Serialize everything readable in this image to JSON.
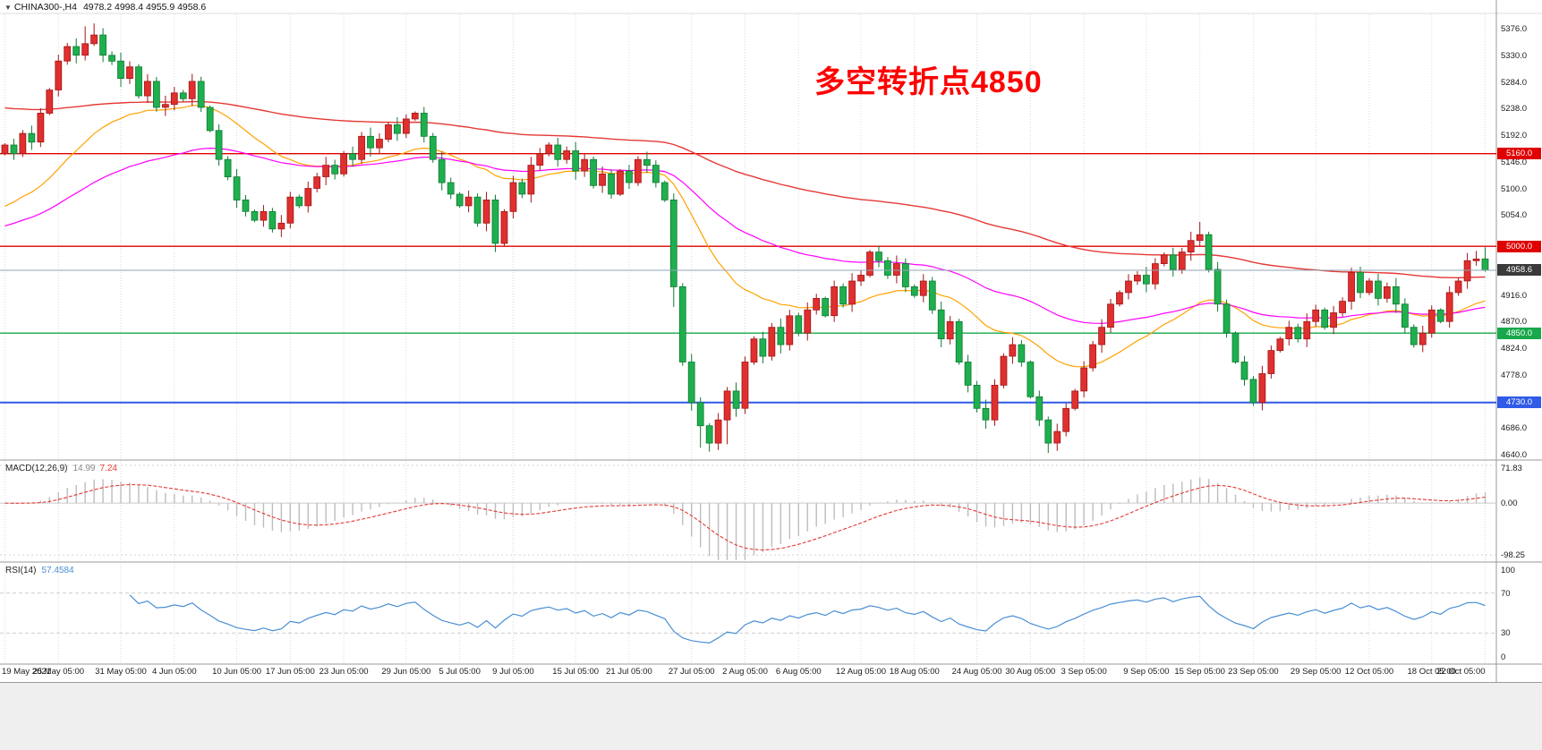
{
  "header": {
    "symbol_period": "CHINA300-,H4",
    "open": "4978.2",
    "high": "4998.4",
    "low": "4955.9",
    "close": "4958.6"
  },
  "annotation": {
    "text": "多空转折点4850",
    "color": "#FF0000"
  },
  "colors": {
    "up": "#DF2F2F",
    "up_stroke": "#A31515",
    "down": "#1FAF4E",
    "down_stroke": "#0F7A33",
    "grid": "#DBDBDB",
    "separator": "#9A9A9A",
    "header_rule": "#DDDDDD",
    "hist": "#BDBDBD",
    "signal": "#E53935",
    "rsi": "#4A8FD4",
    "zero_line": "#C9C9C9",
    "level_dotted": "#D4D4D4"
  },
  "levels": [
    {
      "label": "5160.0",
      "value": 5160.0,
      "color": "#E00000",
      "width": 1.4
    },
    {
      "label": "5000.0",
      "value": 5000.0,
      "color": "#E00000",
      "width": 1.4
    },
    {
      "label": "4850.0",
      "value": 4850.0,
      "color": "#17A84B",
      "width": 1.4
    },
    {
      "label": "4730.0",
      "value": 4730.0,
      "color": "#2F5BE7",
      "width": 2
    }
  ],
  "current_price": {
    "label": "4958.6",
    "value": 4958.6,
    "line_color": "#90A4B7",
    "badge_color": "#3A3A3A"
  },
  "price_axis": {
    "ticks": [
      5376,
      5330,
      5284,
      5238,
      5192,
      5146,
      5100,
      5054,
      4916,
      4870,
      4824,
      4778,
      4686,
      4640
    ]
  },
  "chart_data": {
    "type": "candlestick",
    "title": "CHINA300- H4 candlestick chart with MACD and RSI",
    "symbol": "CHINA300-,H4",
    "last_ohlc": [
      4978.2,
      4998.4,
      4955.9,
      4958.6
    ],
    "first_open": 5160,
    "ylim": [
      4640,
      5376
    ],
    "closes": [
      5175,
      5160,
      5195,
      5180,
      5230,
      5270,
      5320,
      5345,
      5330,
      5350,
      5365,
      5330,
      5320,
      5290,
      5310,
      5260,
      5285,
      5240,
      5245,
      5265,
      5255,
      5285,
      5240,
      5200,
      5150,
      5120,
      5080,
      5060,
      5045,
      5060,
      5030,
      5040,
      5085,
      5070,
      5100,
      5120,
      5140,
      5125,
      5160,
      5150,
      5190,
      5170,
      5185,
      5210,
      5195,
      5220,
      5230,
      5190,
      5150,
      5110,
      5090,
      5070,
      5085,
      5040,
      5080,
      5005,
      5060,
      5110,
      5090,
      5140,
      5160,
      5175,
      5150,
      5165,
      5130,
      5150,
      5105,
      5125,
      5090,
      5130,
      5110,
      5150,
      5140,
      5110,
      5080,
      4930,
      4800,
      4730,
      4690,
      4660,
      4700,
      4750,
      4720,
      4800,
      4840,
      4810,
      4860,
      4830,
      4880,
      4850,
      4890,
      4910,
      4880,
      4930,
      4900,
      4940,
      4950,
      4990,
      4975,
      4950,
      4970,
      4930,
      4915,
      4940,
      4890,
      4840,
      4870,
      4800,
      4760,
      4720,
      4700,
      4760,
      4810,
      4830,
      4800,
      4740,
      4700,
      4660,
      4680,
      4720,
      4750,
      4790,
      4830,
      4860,
      4900,
      4920,
      4940,
      4950,
      4935,
      4970,
      4985,
      4960,
      4990,
      5010,
      5020,
      4960,
      4900,
      4850,
      4800,
      4770,
      4730,
      4780,
      4820,
      4840,
      4860,
      4840,
      4870,
      4890,
      4860,
      4885,
      4905,
      4955,
      4920,
      4940,
      4910,
      4930,
      4900,
      4860,
      4830,
      4850,
      4890,
      4870,
      4920,
      4940,
      4975,
      4978,
      4958.6
    ],
    "wick_overrides": {
      "9": {
        "high": 5380
      },
      "10": {
        "high": 5385
      },
      "55": {
        "low": 4990
      },
      "75": {
        "low": 4895
      },
      "78": {
        "low": 4652
      },
      "79": {
        "low": 4645
      },
      "81": {
        "low": 4658
      },
      "117": {
        "low": 4643
      },
      "134": {
        "high": 5042
      },
      "151": {
        "high": 4963
      },
      "165": {
        "high": 4992
      }
    },
    "moving_averages": [
      {
        "name": "ma-fast-orange",
        "period": 24,
        "seed": 5060,
        "color": "#FFA200",
        "width": 1.2
      },
      {
        "name": "ma-mid-magenta",
        "period": 55,
        "seed": 5030,
        "color": "#FF00FF",
        "width": 1.2
      },
      {
        "name": "ma-slow-red",
        "period": 130,
        "seed": 5240,
        "color": "#E53935",
        "width": 1.4
      }
    ],
    "indicators": {
      "macd": {
        "label": "MACD(12,26,9)",
        "fast": 12,
        "slow": 26,
        "signal": 9,
        "value_main": "14.99",
        "value_signal": "7.24",
        "axis_labels": [
          "71.83",
          "0.00",
          "-98.25"
        ],
        "axis_values": [
          71.83,
          0,
          -98.25
        ],
        "scale": [
          -110,
          80
        ]
      },
      "rsi": {
        "label": "RSI(14)",
        "period": 14,
        "value": "57.4584",
        "levels": [
          70,
          30
        ],
        "axis_labels": [
          "100",
          "70",
          "30",
          "0"
        ],
        "axis_values": [
          100,
          70,
          30,
          0
        ]
      }
    },
    "time_labels": [
      "19 May 2021",
      "25 May 05:00",
      "31 May 05:00",
      "4 Jun 05:00",
      "10 Jun 05:00",
      "17 Jun 05:00",
      "23 Jun 05:00",
      "29 Jun 05:00",
      "5 Jul 05:00",
      "9 Jul 05:00",
      "15 Jul 05:00",
      "21 Jul 05:00",
      "27 Jul 05:00",
      "2 Aug 05:00",
      "6 Aug 05:00",
      "12 Aug 05:00",
      "18 Aug 05:00",
      "24 Aug 05:00",
      "30 Aug 05:00",
      "3 Sep 05:00",
      "9 Sep 05:00",
      "15 Sep 05:00",
      "23 Sep 05:00",
      "29 Sep 05:00",
      "12 Oct 05:00",
      "18 Oct 05:00",
      "22 Oct 05:00"
    ]
  }
}
